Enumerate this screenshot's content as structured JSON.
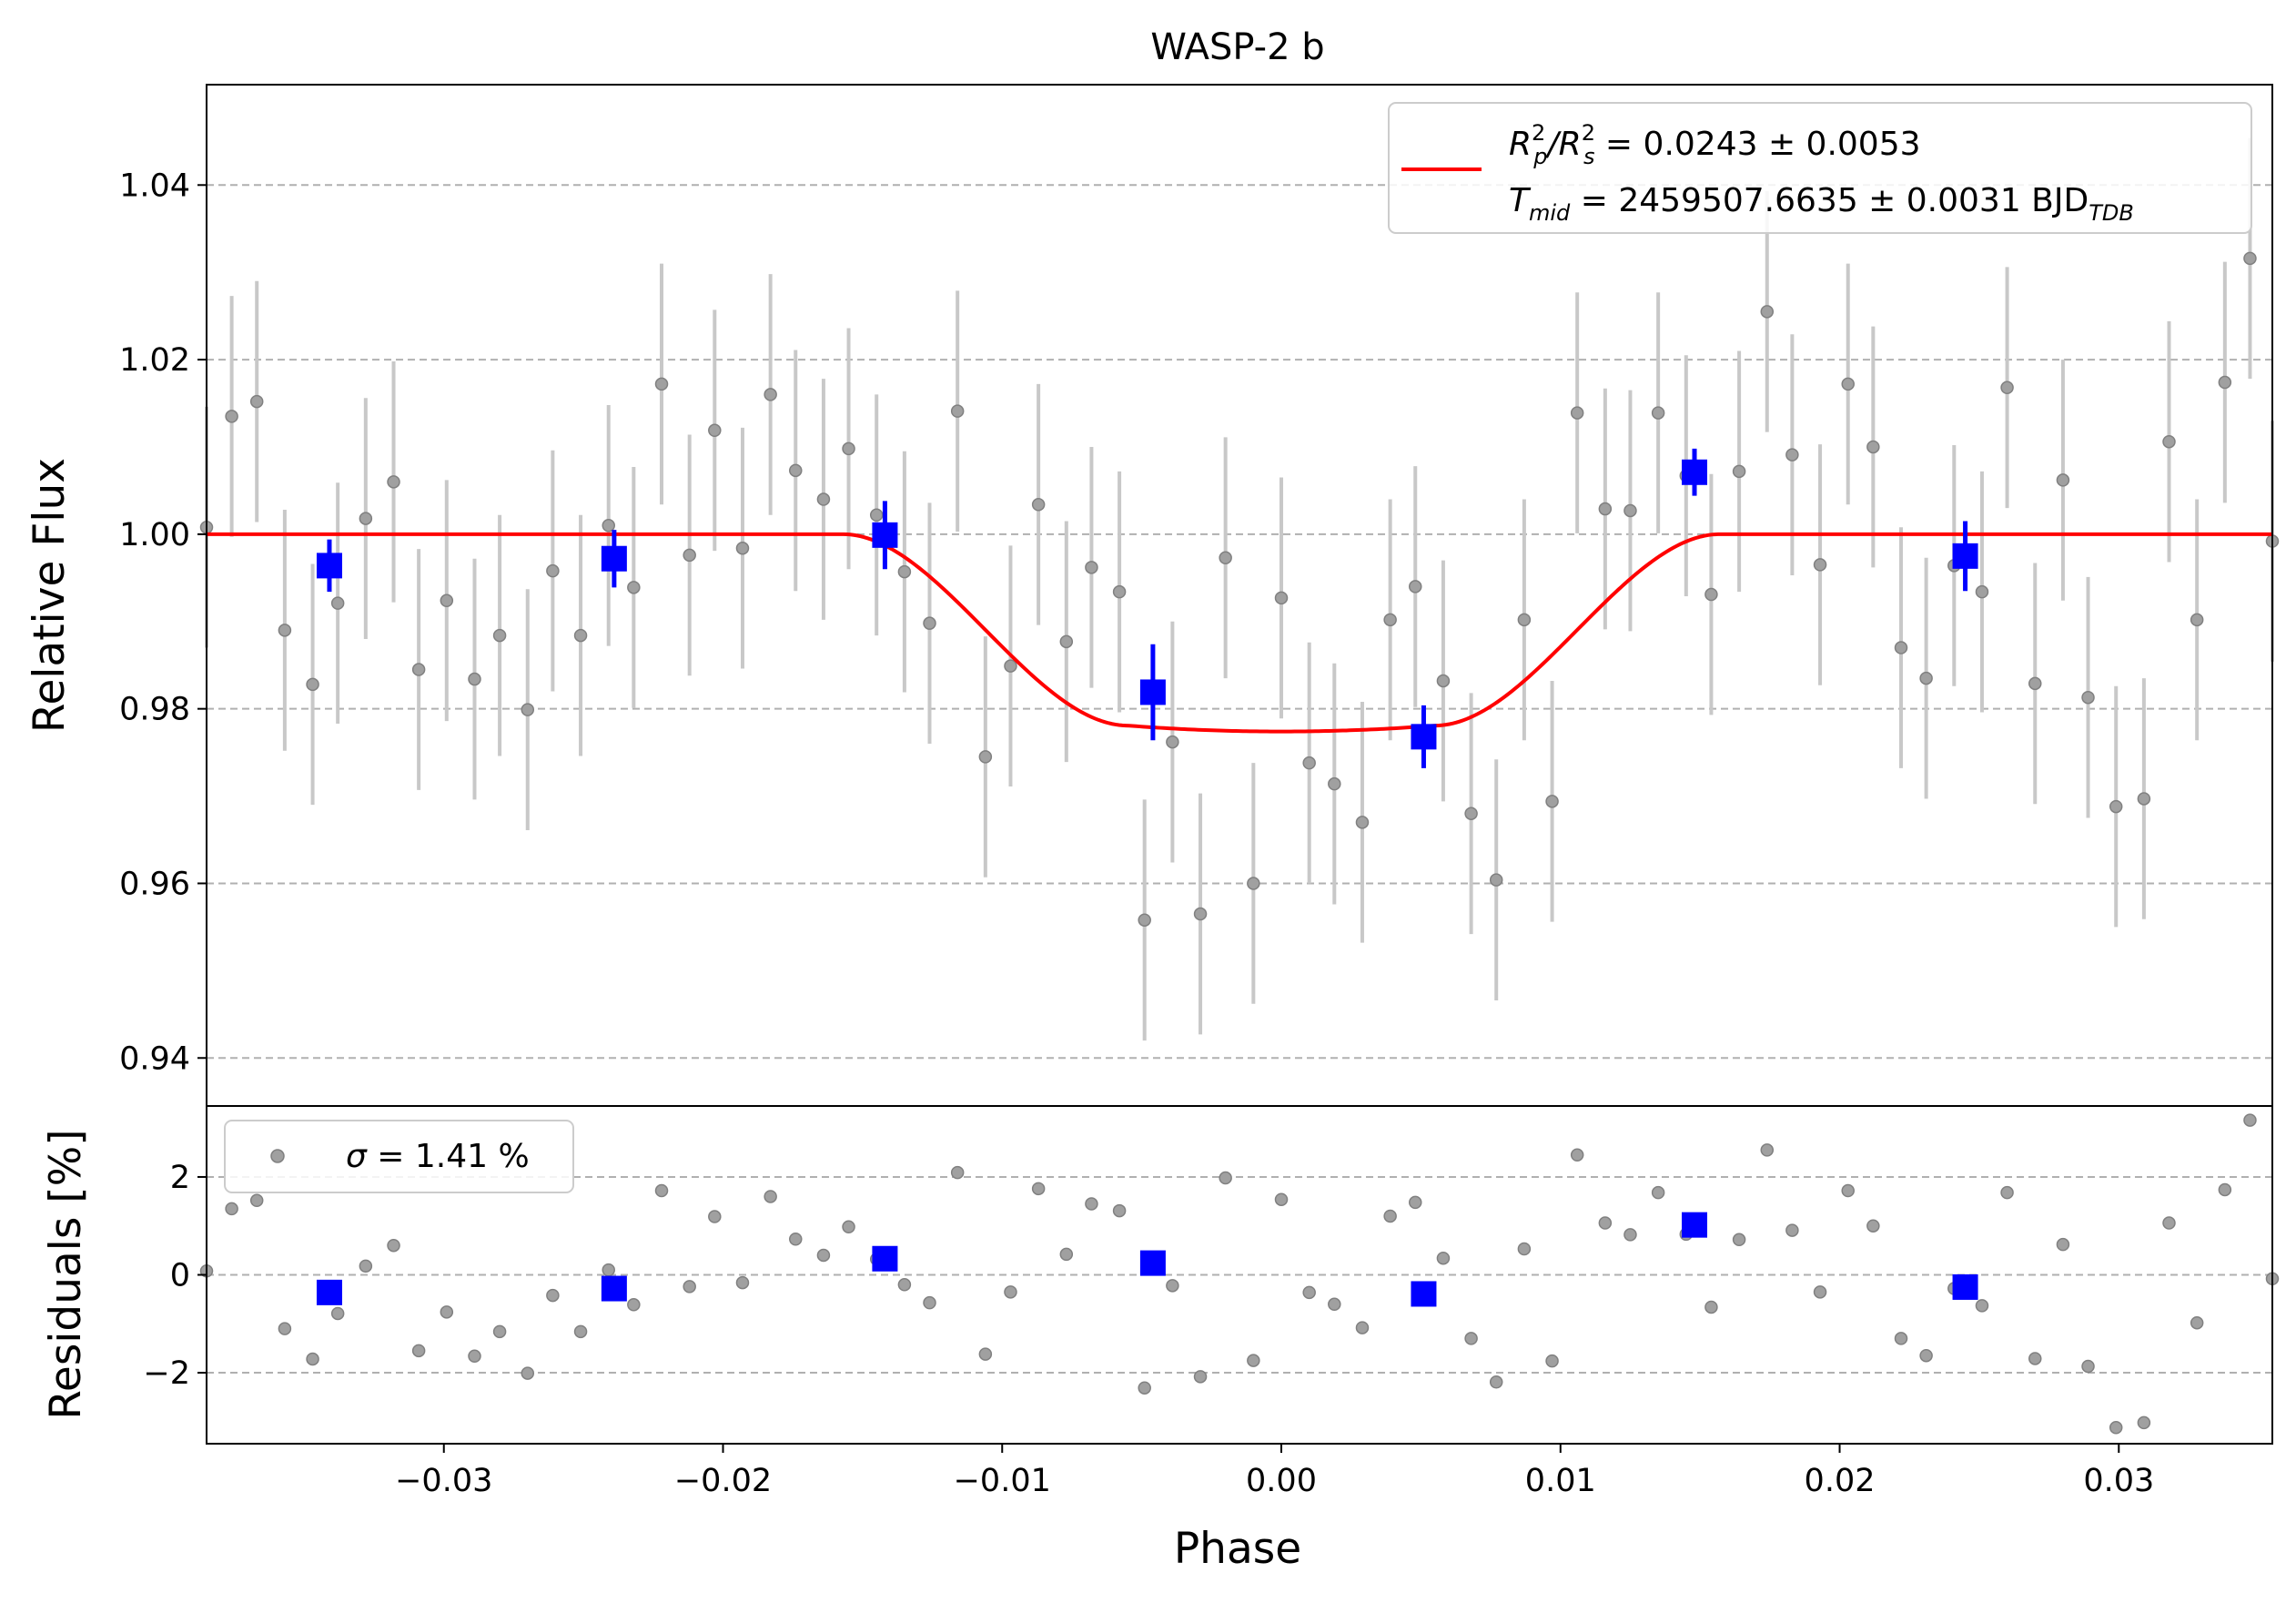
{
  "chart_data": {
    "type": "scatter",
    "title": "WASP-2 b",
    "xlabel": "Phase",
    "colors": {
      "raw": "#888888",
      "binned": "#0000ff",
      "model": "#ff0000",
      "grid": "#b0b0b0",
      "errorbar": "#c8c8c8"
    },
    "xlim": [
      -0.0385,
      0.0355
    ],
    "xticks": [
      -0.03,
      -0.02,
      -0.01,
      0.0,
      0.01,
      0.02,
      0.03
    ],
    "xtick_labels": [
      "−0.03",
      "−0.02",
      "−0.01",
      "0.00",
      "0.01",
      "0.02",
      "0.03"
    ],
    "grid": "horizontal dashed",
    "panels": {
      "flux": {
        "ylabel": "Relative Flux",
        "ylim": [
          0.9345,
          1.0515
        ],
        "yticks": [
          0.94,
          0.96,
          0.98,
          1.0,
          1.02,
          1.04
        ],
        "ytick_labels": [
          "0.94",
          "0.96",
          "0.98",
          "1.00",
          "1.02",
          "1.04"
        ],
        "legend": {
          "placement": "upper-right",
          "line1": {
            "lhs": "R",
            "lhs_sup": "2",
            "lhs_sub": "p",
            "mid": "/R",
            "mid_sup": "2",
            "mid_sub": "s",
            "rhs": " = 0.0243 ± 0.0053"
          },
          "line2": {
            "lhs": "T",
            "lhs_sub": "mid",
            "rhs": " = 2459507.6635 ± 0.0031 BJD",
            "rhs_sub": "TDB"
          }
        },
        "model": {
          "baseline": 1.0,
          "depth": 0.0226,
          "t1": -0.0157,
          "t2": -0.0055,
          "t3": 0.0055,
          "t4": 0.0157
        },
        "raw_x": [
          -0.0385,
          -0.0376,
          -0.0367,
          -0.0357,
          -0.0347,
          -0.0338,
          -0.0328,
          -0.0318,
          -0.0309,
          -0.0299,
          -0.0289,
          -0.028,
          -0.027,
          -0.0261,
          -0.0251,
          -0.0241,
          -0.0232,
          -0.0222,
          -0.0212,
          -0.0203,
          -0.0193,
          -0.0183,
          -0.0174,
          -0.0164,
          -0.0155,
          -0.0145,
          -0.0135,
          -0.0126,
          -0.0116,
          -0.0106,
          -0.0097,
          -0.0087,
          -0.0077,
          -0.0068,
          -0.0058,
          -0.0049,
          -0.0039,
          -0.0029,
          -0.002,
          -0.001,
          0.0,
          0.001,
          0.0019,
          0.0029,
          0.0039,
          0.0048,
          0.0058,
          0.0068,
          0.0077,
          0.0087,
          0.0097,
          0.0106,
          0.0116,
          0.0125,
          0.0135,
          0.0145,
          0.0154,
          0.0164,
          0.0174,
          0.0183,
          0.0193,
          0.0203,
          0.0212,
          0.0222,
          0.0231,
          0.0241,
          0.0251,
          0.026,
          0.027,
          0.028,
          0.0289,
          0.0299,
          0.0309,
          0.0318,
          0.0328,
          0.0338,
          0.0347,
          0.0355
        ],
        "raw_y": [
          1.0008,
          1.0135,
          1.0152,
          0.989,
          0.9828,
          0.9921,
          1.0018,
          1.006,
          0.9845,
          0.9924,
          0.9834,
          0.9884,
          0.9799,
          0.9958,
          0.9884,
          1.001,
          0.9939,
          1.0172,
          0.9976,
          1.0119,
          0.9984,
          1.016,
          1.0073,
          1.004,
          1.0098,
          1.0022,
          0.9957,
          0.9898,
          1.0141,
          0.9745,
          0.9849,
          1.0034,
          0.9877,
          0.9962,
          0.9934,
          0.9558,
          0.9762,
          0.9565,
          0.9973,
          0.96,
          0.9927,
          0.9738,
          0.9714,
          0.967,
          0.9902,
          0.994,
          0.9832,
          0.968,
          0.9604,
          0.9902,
          0.9694,
          1.0139,
          1.0029,
          1.0027,
          1.0139,
          1.0067,
          0.9931,
          1.0072,
          1.0255,
          1.0091,
          0.9965,
          1.0172,
          1.01,
          0.987,
          0.9835,
          0.9964,
          0.9934,
          1.0168,
          0.9829,
          1.0062,
          0.9813,
          0.9688,
          0.9697,
          1.0106,
          0.9902,
          1.0174,
          1.0316,
          0.9992
        ],
        "raw_err": 0.0138,
        "binned_x": [
          -0.0341,
          -0.0239,
          -0.0142,
          -0.0046,
          0.0051,
          0.0148,
          0.0245
        ],
        "binned_y": [
          0.9964,
          0.9972,
          0.9999,
          0.9819,
          0.9768,
          1.0071,
          0.9975
        ],
        "binned_err": [
          0.003,
          0.0033,
          0.0039,
          0.0055,
          0.0036,
          0.0027,
          0.004
        ]
      },
      "residuals": {
        "ylabel": "Residuals [%]",
        "ylim": [
          -3.45,
          3.45
        ],
        "yticks": [
          -2,
          0,
          2
        ],
        "ytick_labels": [
          "−2",
          "0",
          "2"
        ],
        "legend": {
          "placement": "upper-left",
          "symbol": "σ",
          "text": " = 1.41 %"
        },
        "raw_y": [
          0.08,
          1.35,
          1.52,
          -1.1,
          -1.72,
          -0.79,
          0.18,
          0.6,
          -1.55,
          -0.76,
          -1.66,
          -1.16,
          -2.01,
          -0.42,
          -1.16,
          0.1,
          -0.61,
          1.72,
          -0.24,
          1.19,
          -0.16,
          1.6,
          0.73,
          0.4,
          0.98,
          0.32,
          -0.2,
          -0.57,
          2.09,
          -1.62,
          -0.35,
          1.76,
          0.42,
          1.45,
          1.31,
          -2.31,
          -0.22,
          -2.08,
          1.98,
          -1.75,
          1.54,
          -0.36,
          -0.6,
          -1.08,
          1.2,
          1.48,
          0.34,
          -1.3,
          -2.19,
          0.53,
          -1.76,
          2.45,
          1.06,
          0.82,
          1.68,
          0.83,
          -0.66,
          0.72,
          2.55,
          0.91,
          -0.35,
          1.72,
          1.0,
          -1.3,
          -1.65,
          -0.28,
          -0.63,
          1.68,
          -1.71,
          0.62,
          -1.87,
          -3.12,
          -3.02,
          1.06,
          -0.98,
          1.74,
          3.16,
          -0.08
        ],
        "binned_y": [
          -0.36,
          -0.28,
          0.33,
          0.24,
          -0.39,
          1.02,
          -0.25
        ]
      }
    }
  }
}
